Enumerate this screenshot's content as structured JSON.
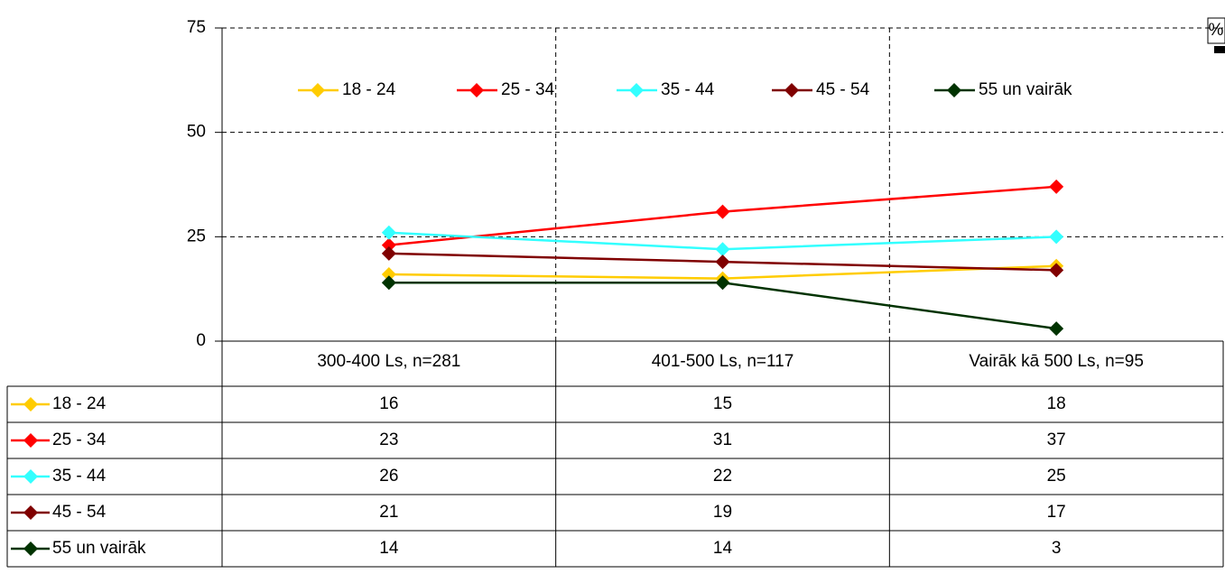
{
  "chart_data": {
    "type": "line",
    "y_label": "%",
    "categories": [
      "300-400 Ls, n=281",
      "401-500 Ls, n=117",
      "Vairāk kā 500 Ls, n=95"
    ],
    "series": [
      {
        "name": "18 - 24",
        "color": "#ffcc00",
        "values": [
          16,
          15,
          18
        ]
      },
      {
        "name": "25 - 34",
        "color": "#ff0000",
        "values": [
          23,
          31,
          37
        ]
      },
      {
        "name": "35 - 44",
        "color": "#33ffff",
        "values": [
          26,
          22,
          25
        ]
      },
      {
        "name": "45 - 54",
        "color": "#800000",
        "values": [
          21,
          19,
          17
        ]
      },
      {
        "name": "55 un vairāk",
        "color": "#003300",
        "values": [
          14,
          14,
          3
        ]
      }
    ],
    "ylim": [
      0,
      75
    ],
    "yticks": [
      0,
      25,
      50,
      75
    ],
    "grid": true,
    "legend": "top",
    "data_table": true
  }
}
